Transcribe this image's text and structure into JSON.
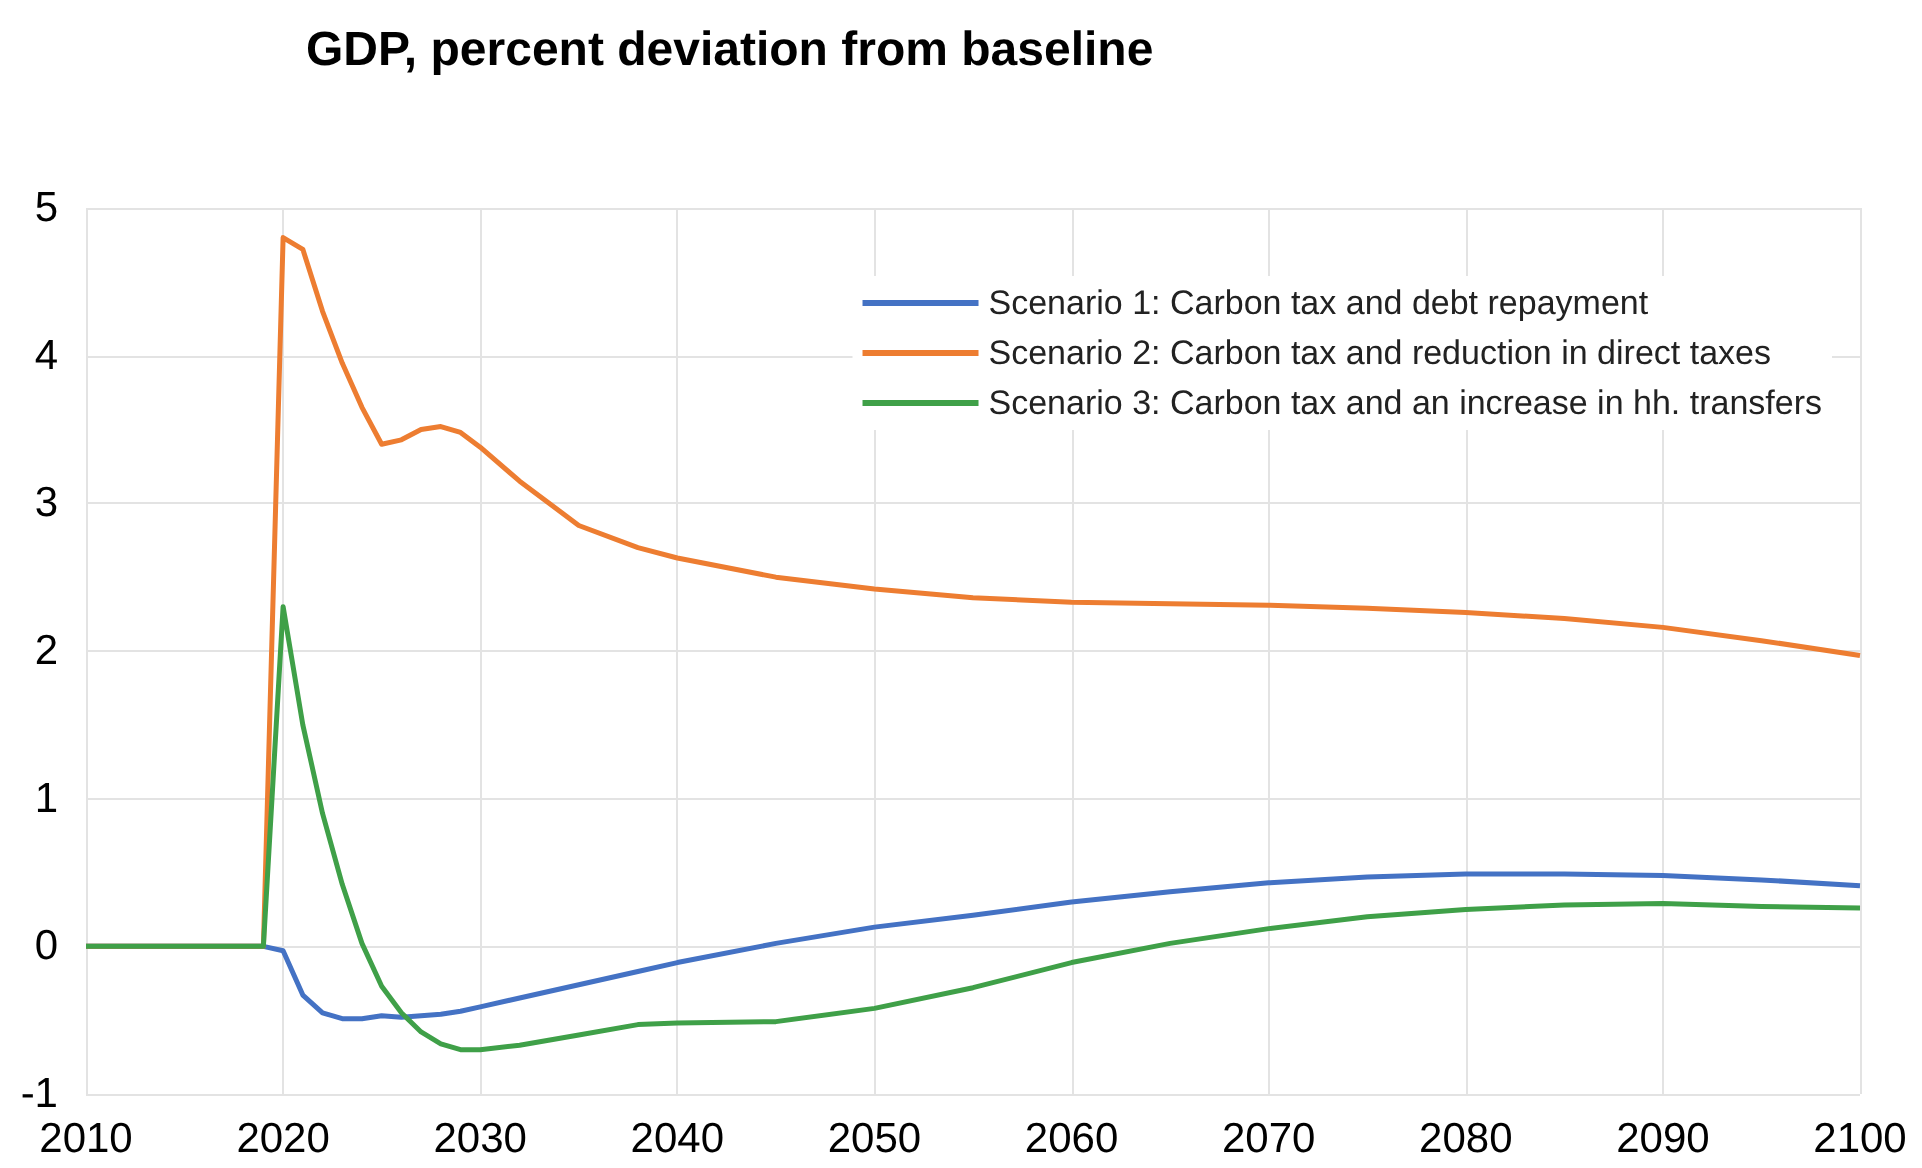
{
  "chart_data": {
    "type": "line",
    "title": "GDP, percent deviation from baseline",
    "x": [
      2010,
      2019,
      2020,
      2021,
      2022,
      2023,
      2024,
      2025,
      2026,
      2027,
      2028,
      2029,
      2030,
      2032,
      2035,
      2038,
      2040,
      2045,
      2050,
      2055,
      2060,
      2065,
      2070,
      2075,
      2080,
      2085,
      2090,
      2095,
      2100
    ],
    "series": [
      {
        "name": "Scenario 1: Carbon tax and debt repayment",
        "color": "#4472c4",
        "values": [
          0,
          0,
          -0.03,
          -0.33,
          -0.45,
          -0.49,
          -0.49,
          -0.47,
          -0.48,
          -0.47,
          -0.46,
          -0.44,
          -0.41,
          -0.35,
          -0.26,
          -0.17,
          -0.11,
          0.02,
          0.13,
          0.21,
          0.3,
          0.37,
          0.43,
          0.47,
          0.49,
          0.49,
          0.48,
          0.45,
          0.41
        ]
      },
      {
        "name": "Scenario 2: Carbon tax and reduction in direct taxes",
        "color": "#ed7d31",
        "values": [
          0,
          0,
          4.8,
          4.72,
          4.3,
          3.95,
          3.65,
          3.4,
          3.43,
          3.5,
          3.52,
          3.48,
          3.38,
          3.15,
          2.85,
          2.7,
          2.63,
          2.5,
          2.42,
          2.36,
          2.33,
          2.32,
          2.31,
          2.29,
          2.26,
          2.22,
          2.16,
          2.07,
          1.97
        ]
      },
      {
        "name": "Scenario 3: Carbon tax and an increase in hh. transfers",
        "color": "#3fa048",
        "values": [
          0,
          0,
          2.3,
          1.5,
          0.9,
          0.42,
          0.02,
          -0.27,
          -0.45,
          -0.58,
          -0.66,
          -0.7,
          -0.7,
          -0.67,
          -0.6,
          -0.53,
          -0.52,
          -0.51,
          -0.42,
          -0.28,
          -0.11,
          0.02,
          0.12,
          0.2,
          0.25,
          0.28,
          0.29,
          0.27,
          0.26
        ]
      }
    ],
    "xlim": [
      2010,
      2100
    ],
    "xticks": [
      2010,
      2020,
      2030,
      2040,
      2050,
      2060,
      2070,
      2080,
      2090,
      2100
    ],
    "ylim": [
      -1,
      5
    ],
    "yticks": [
      -1,
      0,
      1,
      2,
      3,
      4,
      5
    ],
    "grid": true,
    "legend": "top right",
    "marker": "none",
    "line_style": "solid"
  }
}
